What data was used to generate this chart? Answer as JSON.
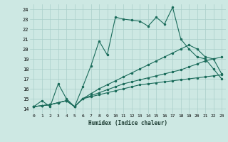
{
  "xlabel": "Humidex (Indice chaleur)",
  "ylabel": "",
  "bg_color": "#cde8e3",
  "grid_color": "#aacfca",
  "line_color": "#1a6b5a",
  "xlim": [
    -0.5,
    23.5
  ],
  "ylim": [
    13.5,
    24.5
  ],
  "xticks": [
    0,
    1,
    2,
    3,
    4,
    5,
    6,
    7,
    8,
    9,
    10,
    11,
    12,
    13,
    14,
    15,
    16,
    17,
    18,
    19,
    20,
    21,
    22,
    23
  ],
  "yticks": [
    14,
    15,
    16,
    17,
    18,
    19,
    20,
    21,
    22,
    23,
    24
  ],
  "lines": [
    {
      "x": [
        0,
        1,
        2,
        3,
        4,
        5,
        6,
        7,
        8,
        9,
        10,
        11,
        12,
        13,
        14,
        15,
        16,
        17,
        18,
        19,
        20,
        21,
        22,
        23
      ],
      "y": [
        14.2,
        14.8,
        14.2,
        16.5,
        15.0,
        14.2,
        16.2,
        18.3,
        20.8,
        19.4,
        23.2,
        23.0,
        22.9,
        22.8,
        22.3,
        23.2,
        22.5,
        24.2,
        21.0,
        20.0,
        19.2,
        19.0,
        18.0,
        17.0
      ]
    },
    {
      "x": [
        0,
        1,
        2,
        3,
        4,
        5,
        6,
        7,
        8,
        9,
        10,
        11,
        12,
        13,
        14,
        15,
        16,
        17,
        18,
        19,
        20,
        21,
        22,
        23
      ],
      "y": [
        14.2,
        14.3,
        14.4,
        14.6,
        14.8,
        14.2,
        15.0,
        15.2,
        15.4,
        15.6,
        15.8,
        16.0,
        16.2,
        16.4,
        16.5,
        16.6,
        16.7,
        16.8,
        16.9,
        17.0,
        17.1,
        17.2,
        17.3,
        17.4
      ]
    },
    {
      "x": [
        0,
        1,
        2,
        3,
        4,
        5,
        6,
        7,
        8,
        9,
        10,
        11,
        12,
        13,
        14,
        15,
        16,
        17,
        18,
        19,
        20,
        21,
        22,
        23
      ],
      "y": [
        14.2,
        14.3,
        14.4,
        14.6,
        14.8,
        14.2,
        15.0,
        15.3,
        15.6,
        15.9,
        16.2,
        16.5,
        16.7,
        16.9,
        17.1,
        17.3,
        17.5,
        17.7,
        17.9,
        18.2,
        18.5,
        18.8,
        19.0,
        19.2
      ]
    },
    {
      "x": [
        0,
        1,
        2,
        3,
        4,
        5,
        6,
        7,
        8,
        9,
        10,
        11,
        12,
        13,
        14,
        15,
        16,
        17,
        18,
        19,
        20,
        21,
        22,
        23
      ],
      "y": [
        14.2,
        14.3,
        14.4,
        14.6,
        14.8,
        14.2,
        15.0,
        15.5,
        16.0,
        16.4,
        16.8,
        17.2,
        17.6,
        18.0,
        18.4,
        18.8,
        19.2,
        19.6,
        20.0,
        20.4,
        20.0,
        19.2,
        19.0,
        17.5
      ]
    }
  ]
}
